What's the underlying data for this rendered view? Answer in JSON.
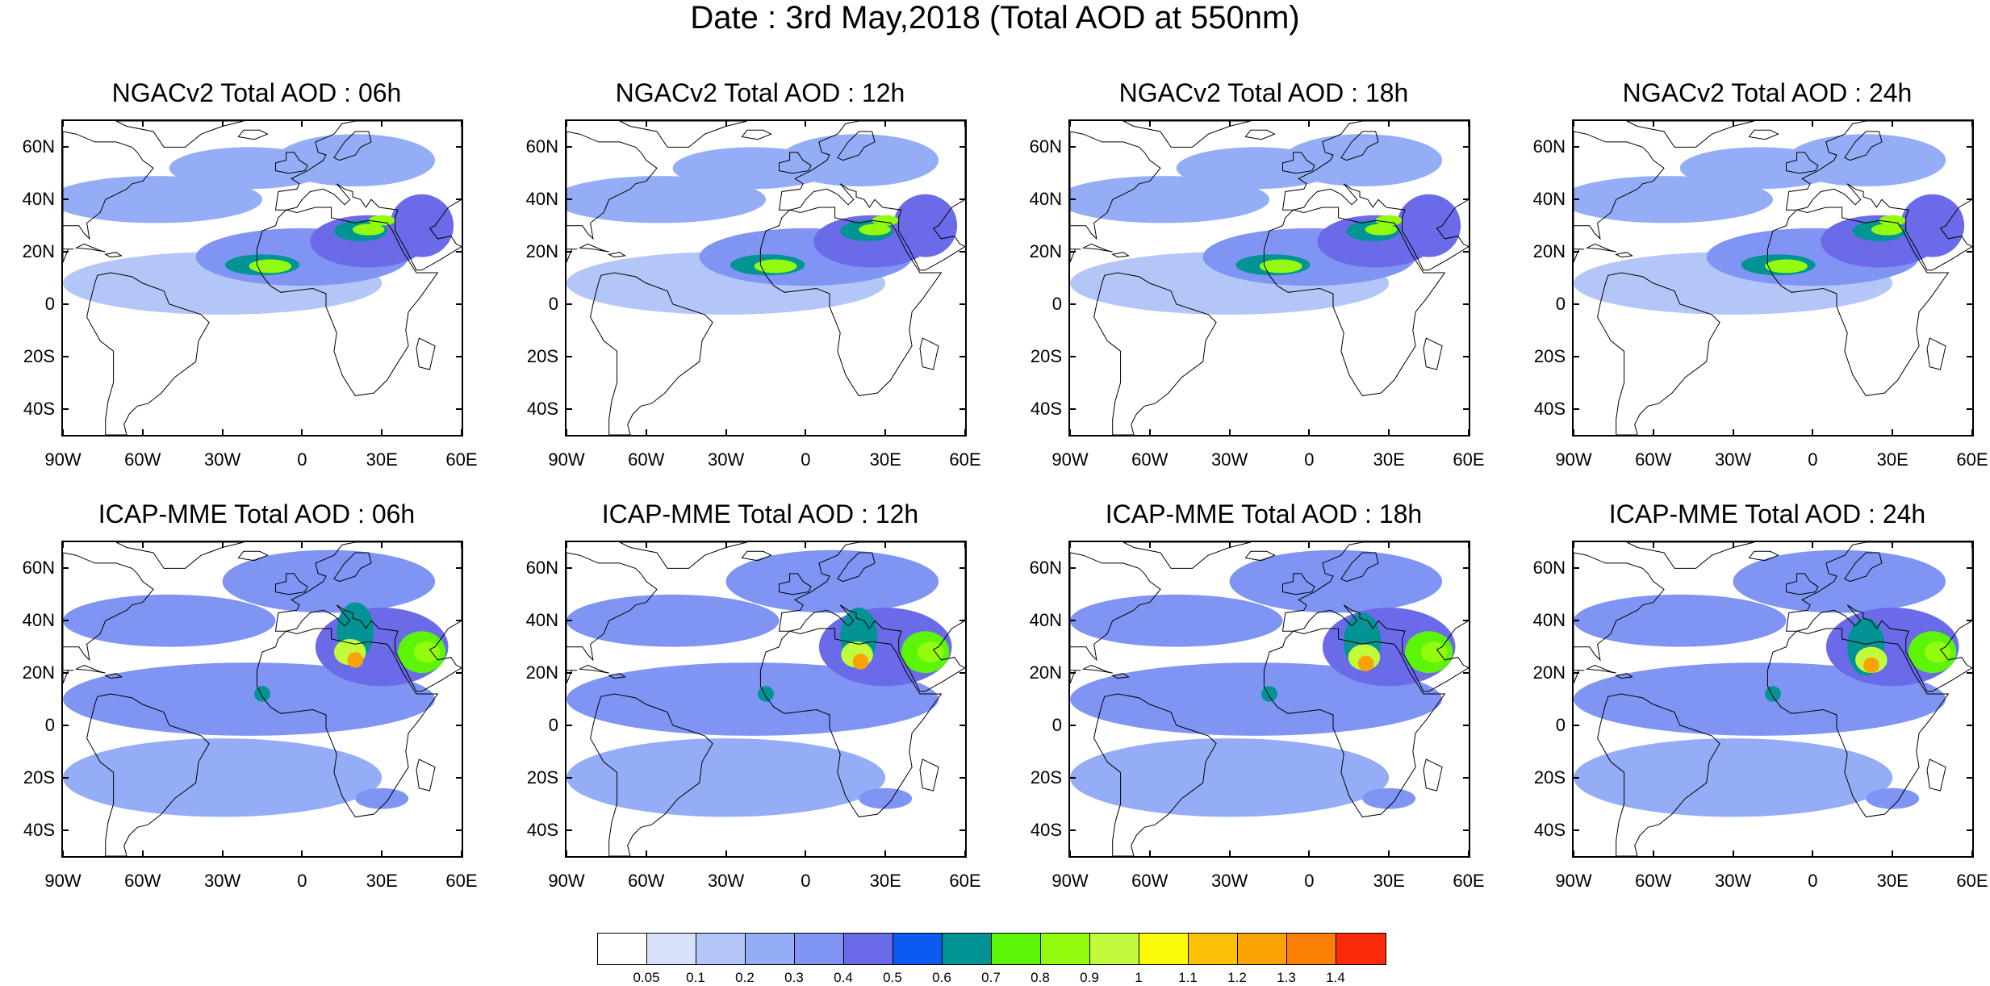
{
  "title": "Date : 3rd May,2018 (Total AOD at 550nm)",
  "panels": [
    {
      "title": "NGACv2 Total AOD : 06h",
      "model": "ngac",
      "hour": 6
    },
    {
      "title": "NGACv2 Total AOD : 12h",
      "model": "ngac",
      "hour": 12
    },
    {
      "title": "NGACv2 Total AOD : 18h",
      "model": "ngac",
      "hour": 18
    },
    {
      "title": "NGACv2 Total AOD : 24h",
      "model": "ngac",
      "hour": 24
    },
    {
      "title": "ICAP-MME Total AOD : 06h",
      "model": "icap",
      "hour": 6
    },
    {
      "title": "ICAP-MME Total AOD : 12h",
      "model": "icap",
      "hour": 12
    },
    {
      "title": "ICAP-MME Total AOD : 18h",
      "model": "icap",
      "hour": 18
    },
    {
      "title": "ICAP-MME Total AOD : 24h",
      "model": "icap",
      "hour": 24
    }
  ],
  "axes": {
    "lat_ticks": [
      {
        "value": 60,
        "label": "60N"
      },
      {
        "value": 40,
        "label": "40N"
      },
      {
        "value": 20,
        "label": "20N"
      },
      {
        "value": 0,
        "label": "0"
      },
      {
        "value": -20,
        "label": "20S"
      },
      {
        "value": -40,
        "label": "40S"
      }
    ],
    "lon_ticks": [
      {
        "value": -90,
        "label": "90W"
      },
      {
        "value": -60,
        "label": "60W"
      },
      {
        "value": -30,
        "label": "30W"
      },
      {
        "value": 0,
        "label": "0"
      },
      {
        "value": 30,
        "label": "30E"
      },
      {
        "value": 60,
        "label": "60E"
      }
    ],
    "lon_range": [
      -90,
      60
    ],
    "lat_range": [
      -50,
      70
    ]
  },
  "colorbar": {
    "colors": [
      "#ffffff",
      "#d7e1fb",
      "#b3c6f7",
      "#94adf6",
      "#7f94f3",
      "#6b6bea",
      "#0d5af2",
      "#029495",
      "#5df507",
      "#92fb0e",
      "#c1fb3c",
      "#fbfb07",
      "#fbc105",
      "#fba305",
      "#fb7e05",
      "#fb2a0b"
    ],
    "labels": [
      "0.05",
      "0.1",
      "0.2",
      "0.3",
      "0.4",
      "0.5",
      "0.6",
      "0.7",
      "0.8",
      "0.9",
      "1",
      "1.1",
      "1.2",
      "1.3",
      "1.4"
    ]
  }
}
